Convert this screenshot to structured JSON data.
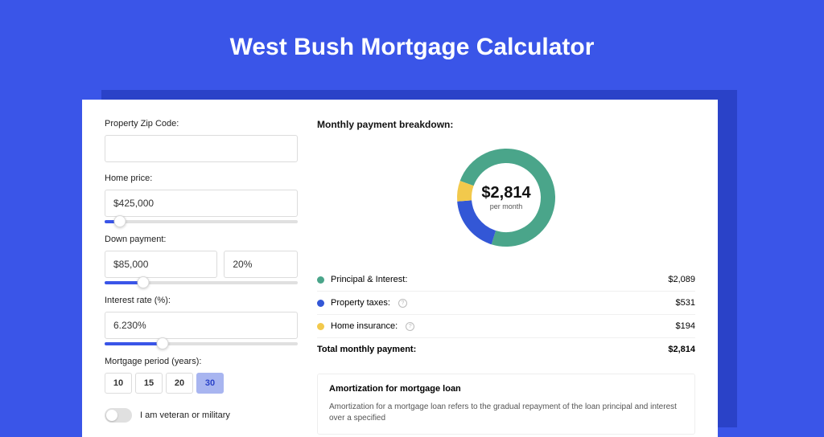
{
  "page": {
    "title": "West Bush Mortgage Calculator",
    "bg_color": "#3a55e8",
    "shadow_color": "#2a42c8",
    "card_bg": "#ffffff"
  },
  "form": {
    "zip": {
      "label": "Property Zip Code:",
      "value": ""
    },
    "home_price": {
      "label": "Home price:",
      "value": "$425,000",
      "slider_pct": 8
    },
    "down_payment": {
      "label": "Down payment:",
      "amount": "$85,000",
      "percent": "20%",
      "slider_pct": 20
    },
    "interest_rate": {
      "label": "Interest rate (%):",
      "value": "6.230%",
      "slider_pct": 30
    },
    "period": {
      "label": "Mortgage period (years):",
      "options": [
        "10",
        "15",
        "20",
        "30"
      ],
      "selected": "30"
    },
    "veteran": {
      "label": "I am veteran or military",
      "checked": false
    }
  },
  "breakdown": {
    "title": "Monthly payment breakdown:",
    "donut": {
      "center_value": "$2,814",
      "center_sub": "per month",
      "slices": [
        {
          "label": "Principal & Interest",
          "color": "#4aa58a",
          "value": 2089,
          "pct": 74.2
        },
        {
          "label": "Property taxes",
          "color": "#3357d6",
          "value": 531,
          "pct": 18.9
        },
        {
          "label": "Home insurance",
          "color": "#f2c94c",
          "value": 194,
          "pct": 6.9
        }
      ],
      "stroke_width": 18,
      "radius": 52,
      "bg": "#ffffff"
    },
    "rows": [
      {
        "dot": "#4aa58a",
        "label": "Principal & Interest:",
        "help": false,
        "value": "$2,089"
      },
      {
        "dot": "#3357d6",
        "label": "Property taxes:",
        "help": true,
        "value": "$531"
      },
      {
        "dot": "#f2c94c",
        "label": "Home insurance:",
        "help": true,
        "value": "$194"
      }
    ],
    "total": {
      "label": "Total monthly payment:",
      "value": "$2,814"
    }
  },
  "amortization": {
    "title": "Amortization for mortgage loan",
    "body": "Amortization for a mortgage loan refers to the gradual repayment of the loan principal and interest over a specified"
  }
}
